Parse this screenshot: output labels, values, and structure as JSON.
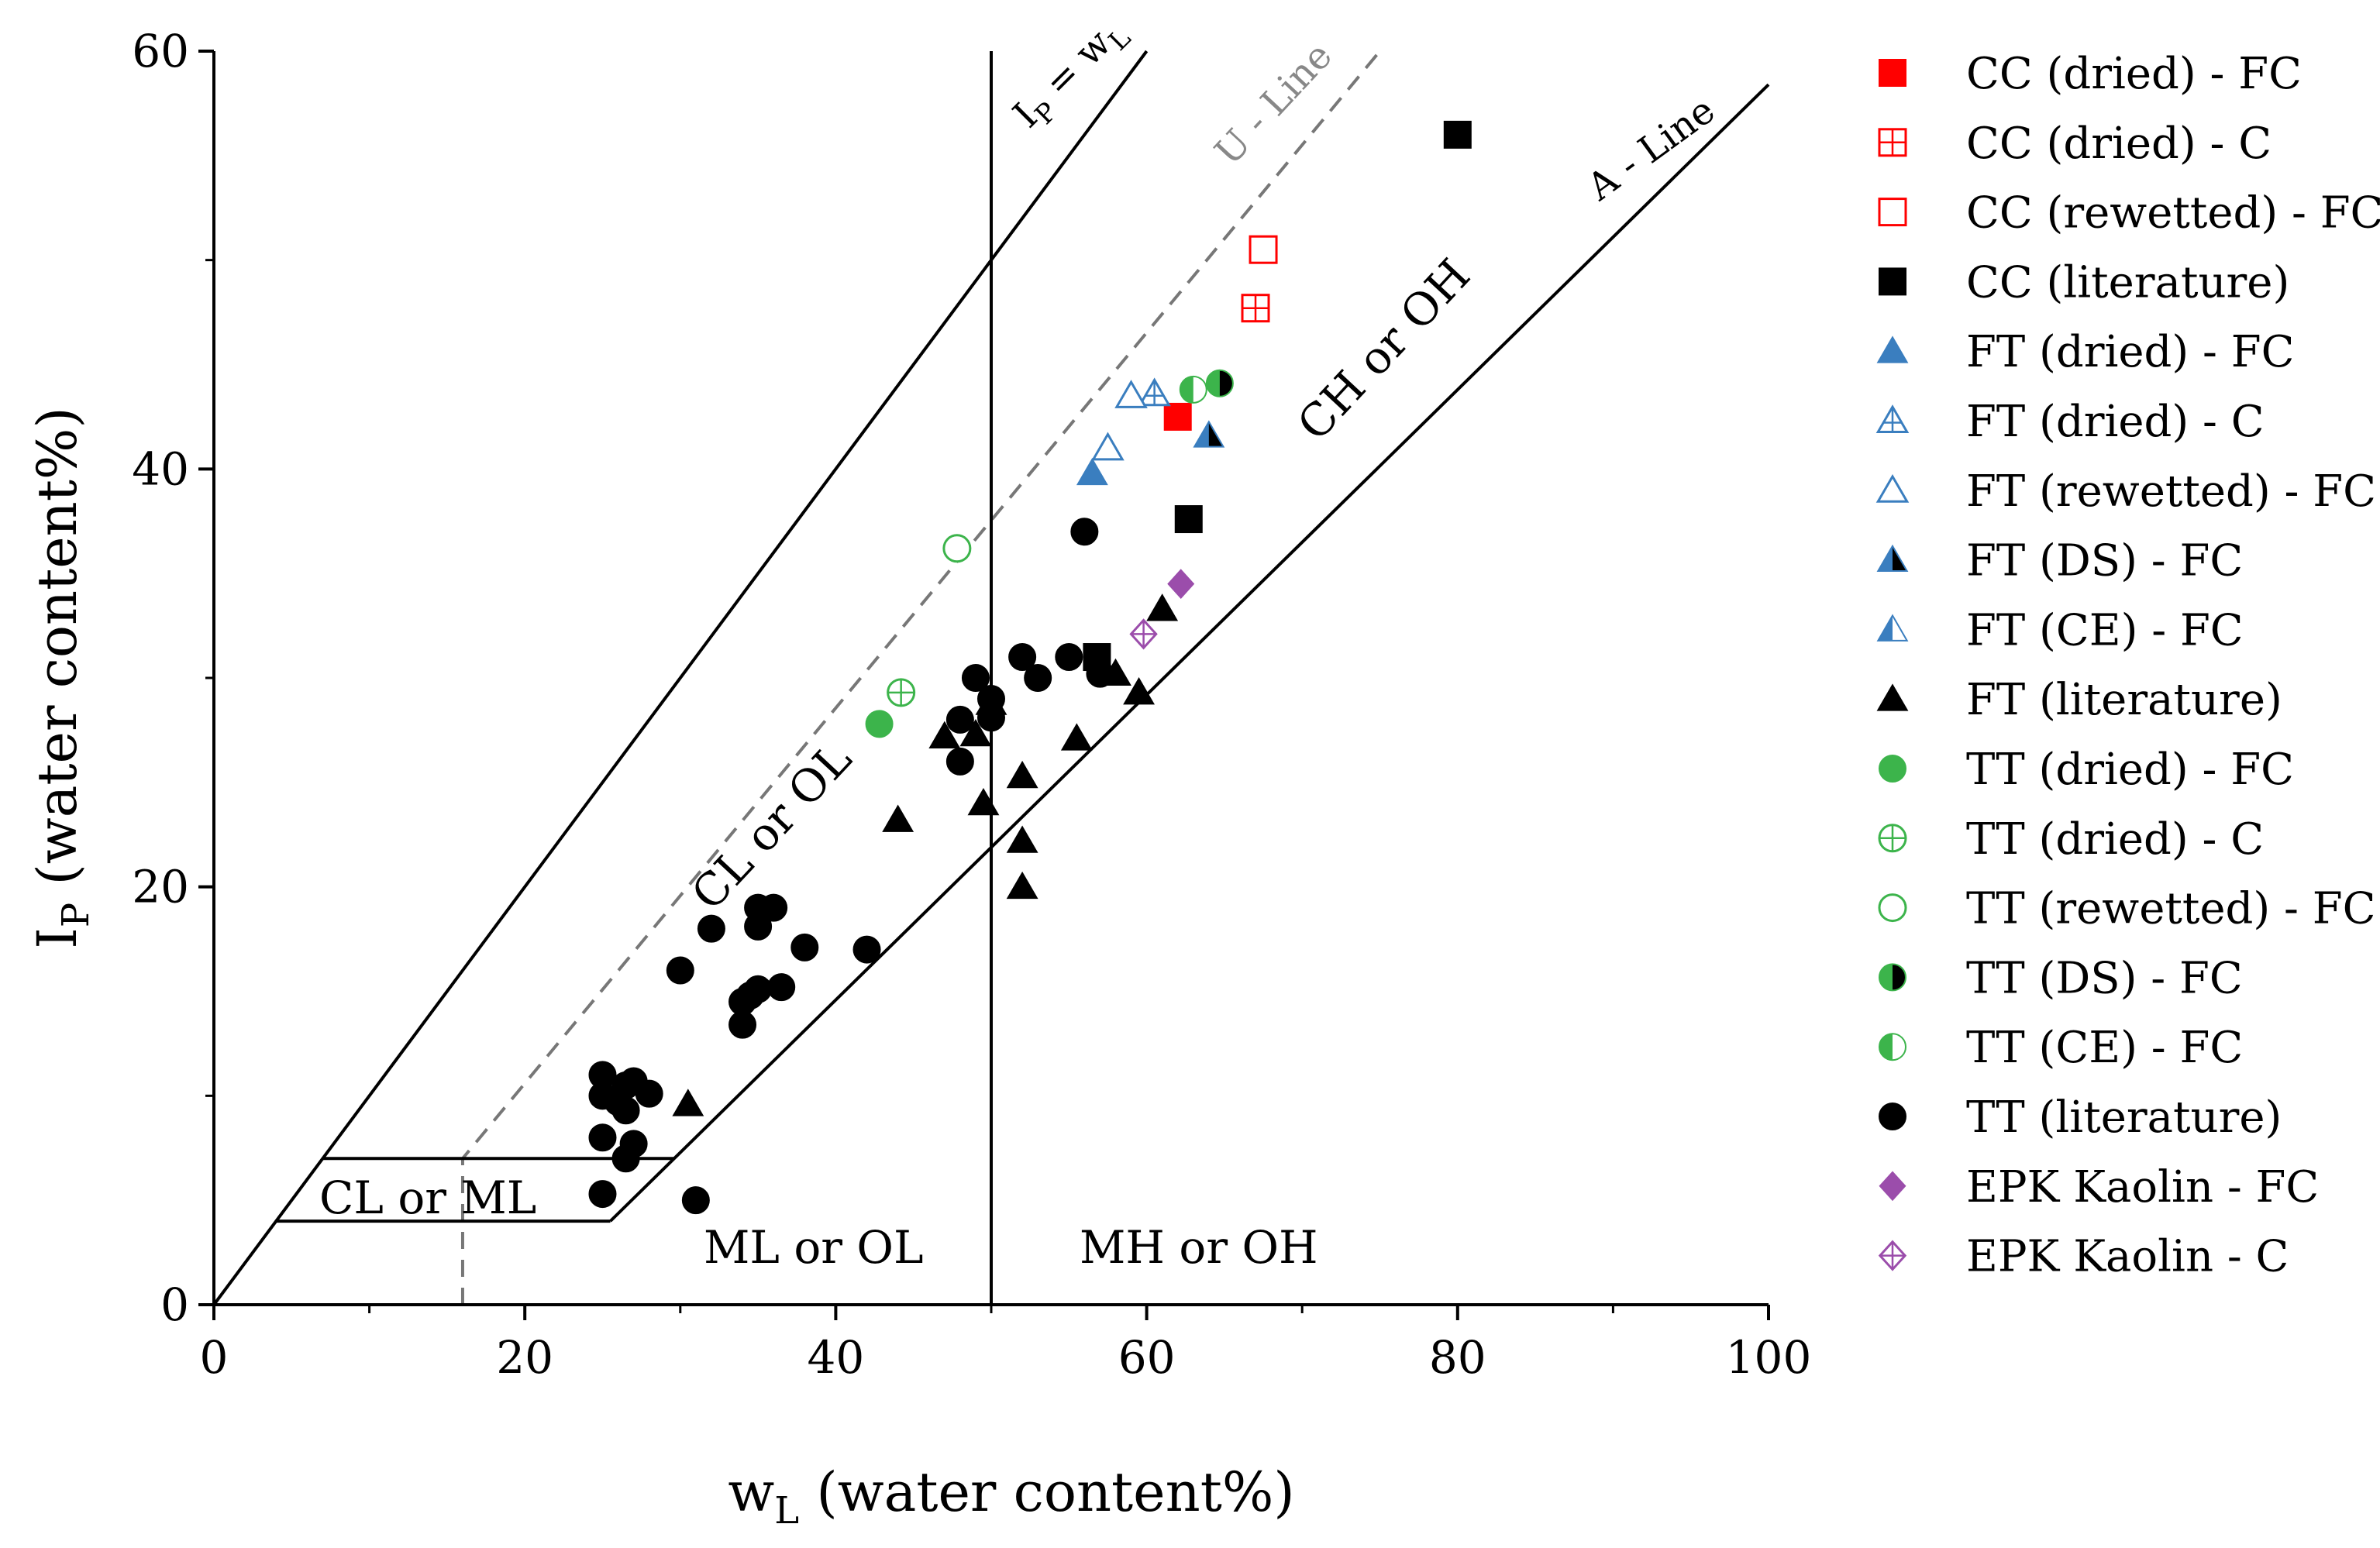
{
  "chart_data": {
    "type": "scatter",
    "title": "",
    "xlabel": {
      "main": "w",
      "sub": "L",
      "rest": " (water content%)"
    },
    "ylabel": {
      "main": "I",
      "sub": "P",
      "rest": " (water content%)"
    },
    "xlim": [
      0,
      100
    ],
    "ylim": [
      0,
      60
    ],
    "xticks": [
      0,
      20,
      40,
      60,
      80,
      100
    ],
    "yticks": [
      0,
      20,
      40,
      60
    ],
    "xticklabels": [
      "0",
      "20",
      "40",
      "60",
      "80",
      "100"
    ],
    "yticklabels": [
      "0",
      "20",
      "40",
      "60"
    ],
    "grid": false,
    "legend_position": "right",
    "reference_lines": [
      {
        "name": "ip-equals-wl-line",
        "points": [
          [
            0,
            0
          ],
          [
            60,
            60
          ]
        ],
        "style": "solid",
        "color": "#000000"
      },
      {
        "name": "u-line",
        "points": [
          [
            16,
            0
          ],
          [
            16,
            7
          ],
          [
            75,
            60
          ]
        ],
        "style": "dashed",
        "color": "#777777"
      },
      {
        "name": "a-line",
        "points": [
          [
            25.5,
            4
          ],
          [
            100,
            58.4
          ]
        ],
        "style": "solid",
        "color": "#000000"
      },
      {
        "name": "wl-50-line",
        "points": [
          [
            50,
            0
          ],
          [
            50,
            60
          ]
        ],
        "style": "solid",
        "color": "#000000"
      },
      {
        "name": "clml-zone-top",
        "points": [
          [
            7,
            7
          ],
          [
            29.6,
            7
          ]
        ],
        "style": "solid",
        "color": "#000000"
      },
      {
        "name": "clml-zone-bottom",
        "points": [
          [
            4,
            4
          ],
          [
            25.5,
            4
          ]
        ],
        "style": "solid",
        "color": "#000000"
      }
    ],
    "line_labels": {
      "ip": {
        "main": "I",
        "sub": "P",
        "rest": " = w",
        "sub2": "L"
      },
      "u_line": "U - Line",
      "a_line": "A - Line"
    },
    "zone_labels": {
      "cl_ol": "CL or OL",
      "ch_oh": "CH or OH",
      "cl_ml": "CL or ML",
      "ml_ol": "ML or OL",
      "mh_oh": "MH or OH"
    },
    "series": [
      {
        "name": "CC (dried) - FC",
        "marker": "square",
        "fill": "full",
        "color": "#ff0000",
        "points": [
          [
            62,
            42.5
          ]
        ]
      },
      {
        "name": "CC (dried) - C",
        "marker": "square",
        "fill": "cross",
        "color": "#ff0000",
        "points": [
          [
            67,
            47.7
          ]
        ]
      },
      {
        "name": "CC (rewetted) - FC",
        "marker": "square",
        "fill": "none",
        "color": "#ff0000",
        "points": [
          [
            67.5,
            50.5
          ]
        ]
      },
      {
        "name": "CC (literature)",
        "marker": "square",
        "fill": "full",
        "color": "#000000",
        "points": [
          [
            80,
            56
          ],
          [
            62.7,
            37.6
          ],
          [
            56.8,
            31
          ]
        ]
      },
      {
        "name": "FT (dried) - FC",
        "marker": "triangle",
        "fill": "full",
        "color": "#3a7ebf",
        "points": [
          [
            56.5,
            39.8
          ]
        ]
      },
      {
        "name": "FT (dried) - C",
        "marker": "triangle",
        "fill": "cross",
        "color": "#3a7ebf",
        "points": [
          [
            60.5,
            43.6
          ]
        ]
      },
      {
        "name": "FT (rewetted) - FC",
        "marker": "triangle",
        "fill": "none",
        "color": "#3a7ebf",
        "points": [
          [
            59,
            43.5
          ],
          [
            57.5,
            41
          ]
        ]
      },
      {
        "name": "FT (DS) - FC",
        "marker": "triangle",
        "fill": "split-black",
        "color": "#3a7ebf",
        "points": [
          [
            64,
            41.6
          ]
        ]
      },
      {
        "name": "FT (CE) - FC",
        "marker": "triangle",
        "fill": "split-white",
        "color": "#3a7ebf",
        "points": []
      },
      {
        "name": "FT (literature)",
        "marker": "triangle",
        "fill": "full",
        "color": "#000000",
        "points": [
          [
            30.5,
            9.6
          ],
          [
            44,
            23.2
          ],
          [
            47,
            27.2
          ],
          [
            49,
            27.3
          ],
          [
            49.5,
            24
          ],
          [
            50,
            28.8
          ],
          [
            52,
            25.3
          ],
          [
            52,
            22.2
          ],
          [
            52,
            20
          ],
          [
            55.5,
            27.1
          ],
          [
            58,
            30.2
          ],
          [
            59.5,
            29.3
          ],
          [
            61,
            33.3
          ]
        ]
      },
      {
        "name": "TT (dried) - FC",
        "marker": "circle",
        "fill": "full",
        "color": "#3cb44b",
        "points": [
          [
            42.8,
            27.8
          ]
        ]
      },
      {
        "name": "TT (dried) - C",
        "marker": "circle",
        "fill": "cross",
        "color": "#3cb44b",
        "points": [
          [
            44.2,
            29.3
          ]
        ]
      },
      {
        "name": "TT (rewetted) - FC",
        "marker": "circle",
        "fill": "none",
        "color": "#3cb44b",
        "points": [
          [
            47.8,
            36.2
          ]
        ]
      },
      {
        "name": "TT (DS) - FC",
        "marker": "circle",
        "fill": "split-black",
        "color": "#3cb44b",
        "points": [
          [
            64.7,
            44.1
          ]
        ]
      },
      {
        "name": "TT (CE) - FC",
        "marker": "circle",
        "fill": "split-white",
        "color": "#3cb44b",
        "points": [
          [
            63,
            43.8
          ]
        ]
      },
      {
        "name": "TT (literature)",
        "marker": "circle",
        "fill": "full",
        "color": "#000000",
        "points": [
          [
            25,
            11
          ],
          [
            25,
            10
          ],
          [
            25,
            8
          ],
          [
            25,
            5.3
          ],
          [
            26,
            9.7
          ],
          [
            26.5,
            9.3
          ],
          [
            26.5,
            10.5
          ],
          [
            27,
            10.7
          ],
          [
            27,
            7.7
          ],
          [
            26.5,
            7
          ],
          [
            28,
            10.1
          ],
          [
            31,
            5
          ],
          [
            30,
            16
          ],
          [
            32,
            18
          ],
          [
            34,
            14.5
          ],
          [
            34,
            13.4
          ],
          [
            34.5,
            14.8
          ],
          [
            35,
            15.1
          ],
          [
            35,
            18.1
          ],
          [
            35,
            19
          ],
          [
            36,
            19
          ],
          [
            36.5,
            15.2
          ],
          [
            38,
            17.1
          ],
          [
            42,
            17
          ],
          [
            48,
            26
          ],
          [
            48,
            28
          ],
          [
            49,
            30
          ],
          [
            50,
            28.1
          ],
          [
            50,
            29
          ],
          [
            52,
            31
          ],
          [
            53,
            30
          ],
          [
            55,
            31
          ],
          [
            56,
            37
          ],
          [
            57,
            30.2
          ]
        ]
      },
      {
        "name": "EPK Kaolin - FC",
        "marker": "diamond",
        "fill": "full",
        "color": "#9b4dab",
        "points": [
          [
            62.2,
            34.5
          ]
        ]
      },
      {
        "name": "EPK Kaolin - C",
        "marker": "diamond",
        "fill": "cross",
        "color": "#9b4dab",
        "points": [
          [
            59.8,
            32.1
          ]
        ]
      }
    ]
  }
}
